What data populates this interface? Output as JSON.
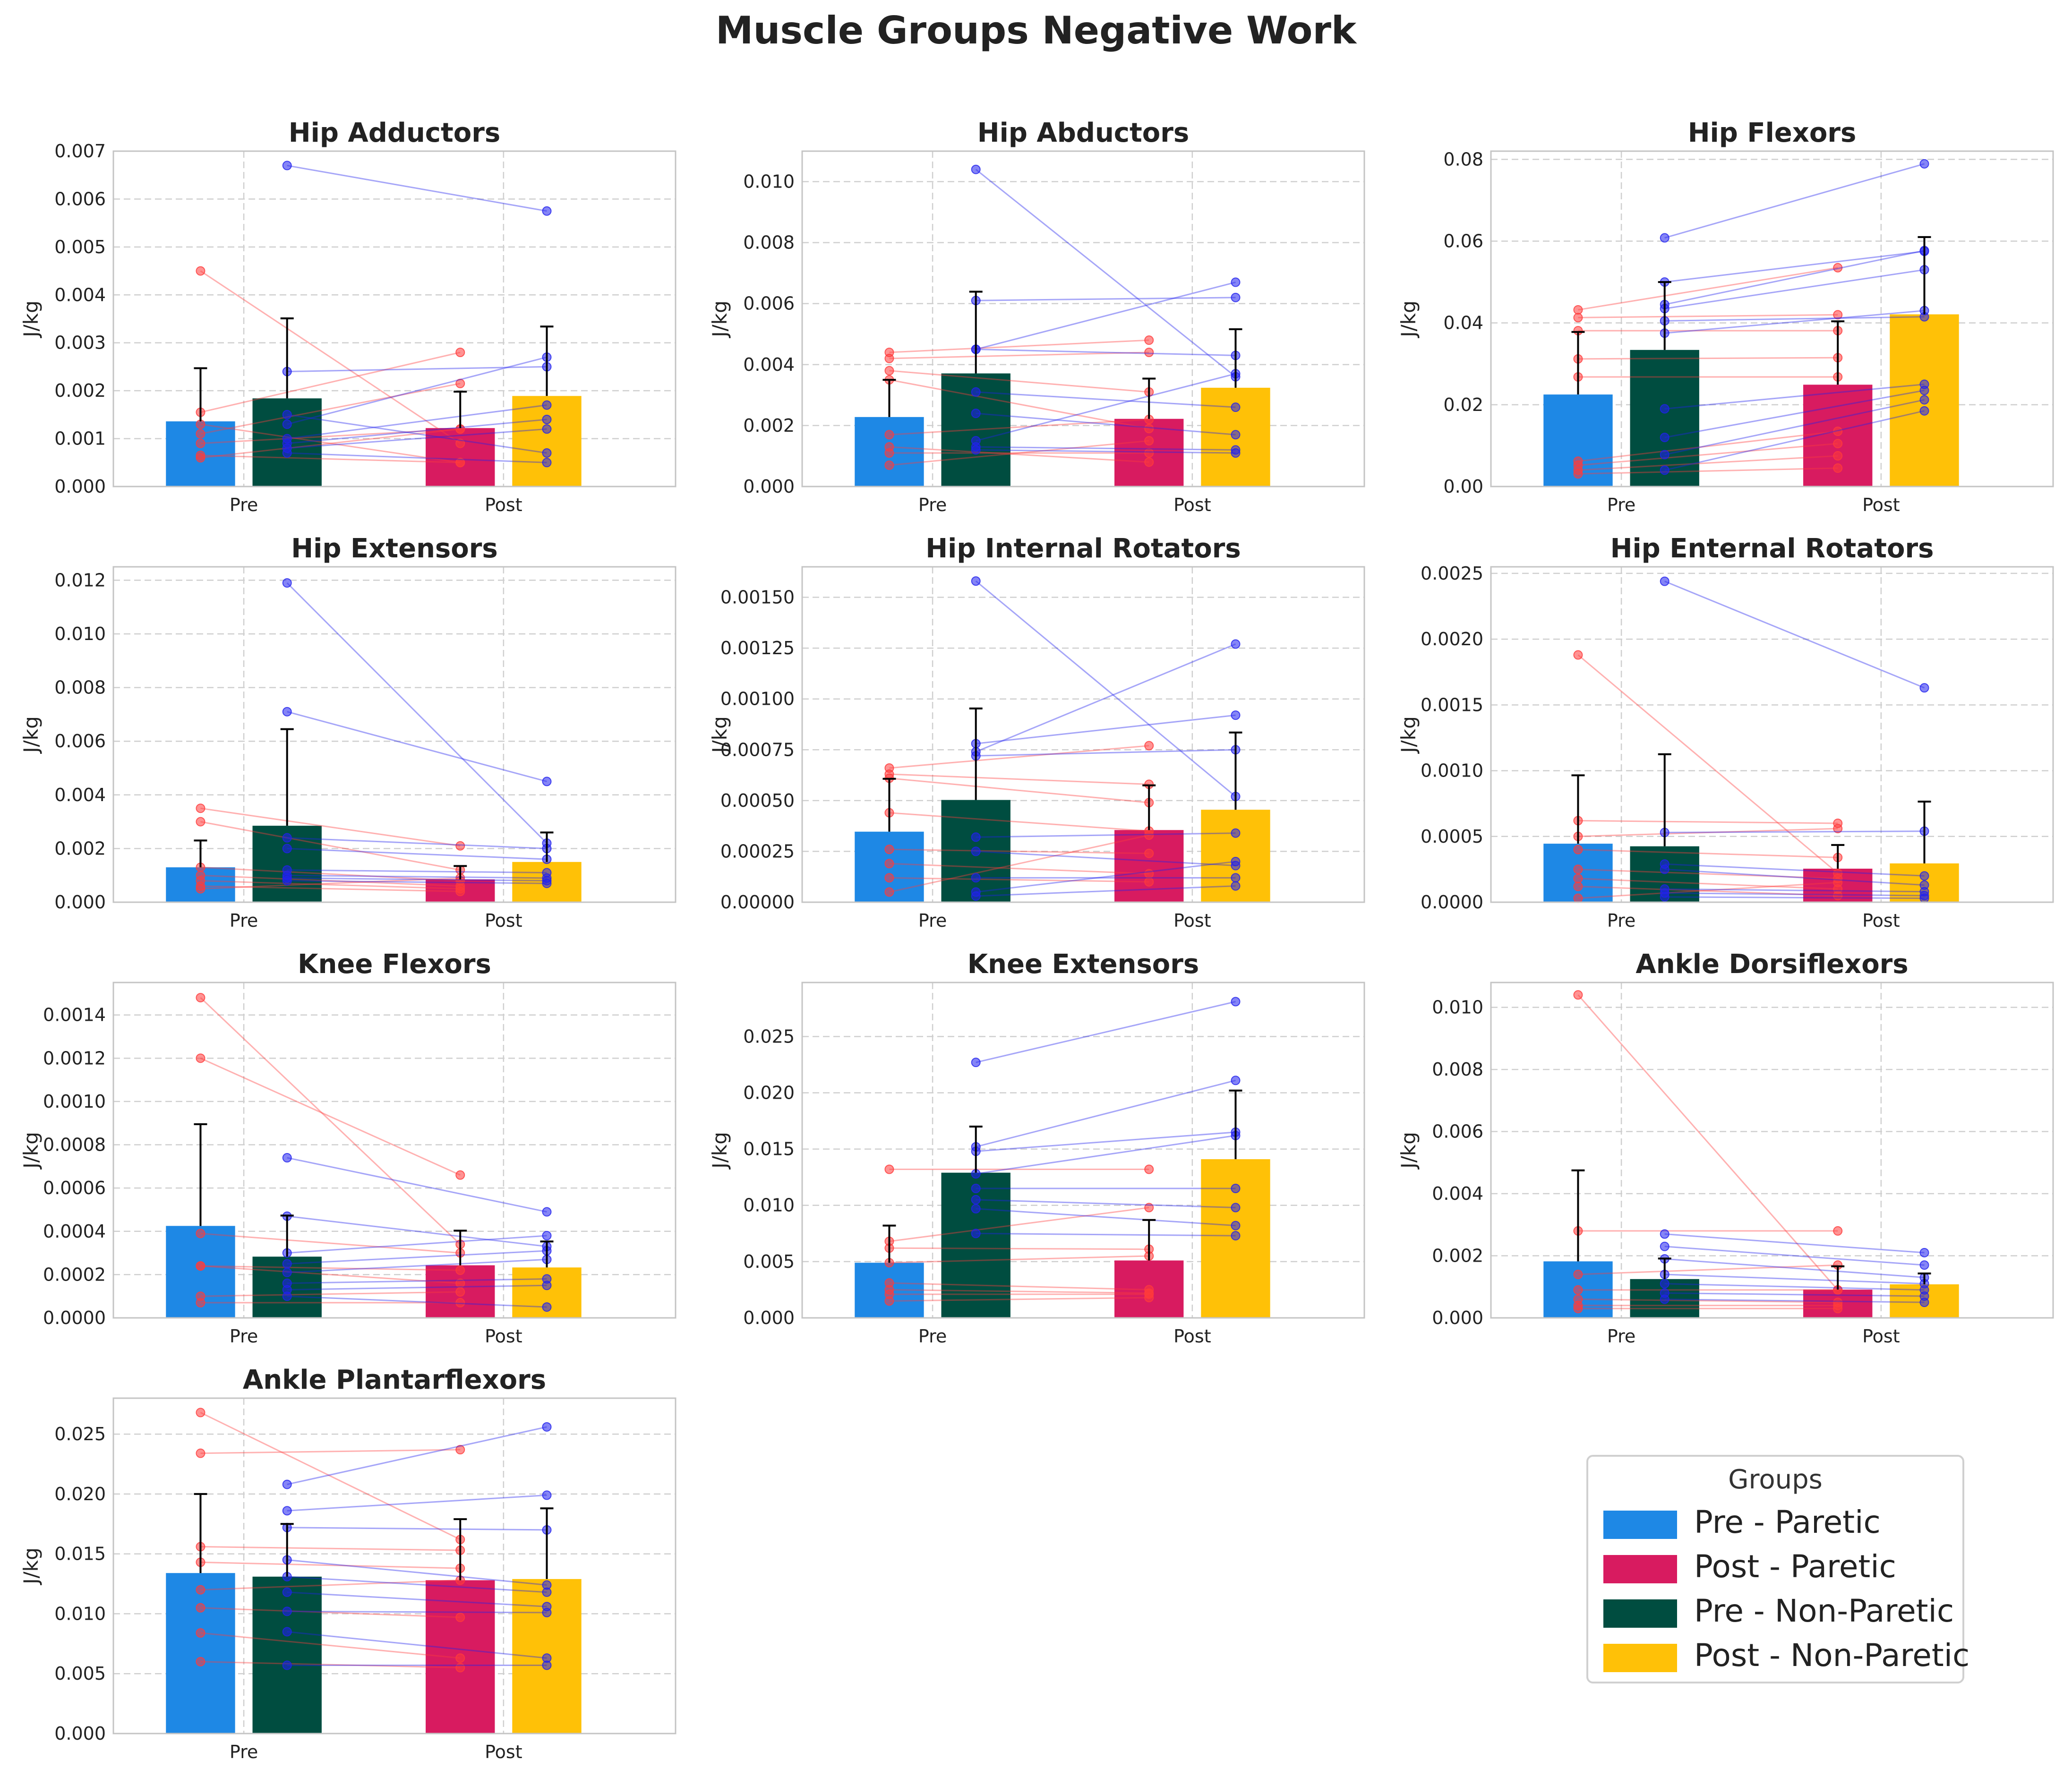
{
  "figure_title": "Muscle Groups Negative Work",
  "colors": {
    "pre_paretic": "#1e88e5",
    "post_paretic": "#d81b60",
    "pre_nonparetic": "#004d40",
    "post_nonparetic": "#ffc107",
    "paretic_points": "#ff3b3b",
    "nonparetic_points": "#2020ee"
  },
  "legend": {
    "title": "Groups",
    "items": [
      {
        "label": "Pre - Paretic",
        "color": "#1e88e5"
      },
      {
        "label": "Post - Paretic",
        "color": "#d81b60"
      },
      {
        "label": "Pre - Non-Paretic",
        "color": "#004d40"
      },
      {
        "label": "Post - Non-Paretic",
        "color": "#ffc107"
      }
    ]
  },
  "chart_data": [
    {
      "type": "bar",
      "title": "Hip Adductors",
      "ylabel": "J/kg",
      "xlabel": "",
      "categories": [
        "Pre",
        "Post"
      ],
      "ylim": [
        0,
        0.007
      ],
      "yticks": [
        "0.000",
        "0.001",
        "0.002",
        "0.003",
        "0.004",
        "0.005",
        "0.006",
        "0.007"
      ],
      "yticks_values": [
        0,
        0.001,
        0.002,
        0.003,
        0.004,
        0.005,
        0.006,
        0.007
      ],
      "series": [
        {
          "name": "Paretic",
          "values": [
            0.00136,
            0.00122
          ],
          "errors": [
            0.00111,
            0.00076
          ]
        },
        {
          "name": "Non-Paretic",
          "values": [
            0.00184,
            0.00189
          ],
          "errors": [
            0.00167,
            0.00145
          ]
        }
      ],
      "paretic_pairs": [
        [
          0.0045,
          0.0009
        ],
        [
          0.00155,
          0.0028
        ],
        [
          0.0011,
          0.00215
        ],
        [
          0.0009,
          0.0012
        ],
        [
          0.00065,
          0.0005
        ],
        [
          0.0006,
          0.0012
        ],
        [
          0.0013,
          0.0005
        ]
      ],
      "nonparetic_pairs": [
        [
          0.0067,
          0.00575
        ],
        [
          0.0024,
          0.0025
        ],
        [
          0.0013,
          0.0027
        ],
        [
          0.001,
          0.0017
        ],
        [
          0.0009,
          0.0014
        ],
        [
          0.0008,
          0.0012
        ],
        [
          0.0015,
          0.0007
        ],
        [
          0.0007,
          0.0005
        ]
      ]
    },
    {
      "type": "bar",
      "title": "Hip Abductors",
      "ylabel": "J/kg",
      "xlabel": "",
      "categories": [
        "Pre",
        "Post"
      ],
      "ylim": [
        0,
        0.011
      ],
      "yticks": [
        "0.000",
        "0.002",
        "0.004",
        "0.006",
        "0.008",
        "0.010"
      ],
      "yticks_values": [
        0,
        0.002,
        0.004,
        0.006,
        0.008,
        0.01
      ],
      "series": [
        {
          "name": "Paretic",
          "values": [
            0.00228,
            0.00222
          ],
          "errors": [
            0.00122,
            0.00132
          ]
        },
        {
          "name": "Non-Paretic",
          "values": [
            0.00371,
            0.00324
          ],
          "errors": [
            0.00268,
            0.00192
          ]
        }
      ],
      "paretic_pairs": [
        [
          0.0044,
          0.0048
        ],
        [
          0.0042,
          0.0044
        ],
        [
          0.0038,
          0.0031
        ],
        [
          0.0035,
          0.0019
        ],
        [
          0.0017,
          0.0022
        ],
        [
          0.0013,
          0.0008
        ],
        [
          0.0011,
          0.0011
        ],
        [
          0.0007,
          0.0015
        ]
      ],
      "nonparetic_pairs": [
        [
          0.0104,
          0.0036
        ],
        [
          0.0061,
          0.0062
        ],
        [
          0.0045,
          0.0043
        ],
        [
          0.0045,
          0.0067
        ],
        [
          0.0031,
          0.0026
        ],
        [
          0.0024,
          0.0017
        ],
        [
          0.0015,
          0.0037
        ],
        [
          0.0013,
          0.0012
        ],
        [
          0.0012,
          0.0011
        ]
      ]
    },
    {
      "type": "bar",
      "title": "Hip Flexors",
      "ylabel": "J/kg",
      "xlabel": "",
      "categories": [
        "Pre",
        "Post"
      ],
      "ylim": [
        0,
        0.082
      ],
      "yticks": [
        "0.00",
        "0.02",
        "0.04",
        "0.06",
        "0.08"
      ],
      "yticks_values": [
        0,
        0.02,
        0.04,
        0.06,
        0.08
      ],
      "series": [
        {
          "name": "Paretic",
          "values": [
            0.0225,
            0.0249
          ],
          "errors": [
            0.0153,
            0.0155
          ]
        },
        {
          "name": "Non-Paretic",
          "values": [
            0.0334,
            0.0421
          ],
          "errors": [
            0.0166,
            0.0189
          ]
        }
      ],
      "paretic_pairs": [
        [
          0.0432,
          0.0535
        ],
        [
          0.0413,
          0.042
        ],
        [
          0.0381,
          0.0381
        ],
        [
          0.0312,
          0.0315
        ],
        [
          0.0268,
          0.0268
        ],
        [
          0.0062,
          0.0135
        ],
        [
          0.0052,
          0.0105
        ],
        [
          0.004,
          0.0075
        ],
        [
          0.0031,
          0.0045
        ]
      ],
      "nonparetic_pairs": [
        [
          0.0608,
          0.0789
        ],
        [
          0.05,
          0.0575
        ],
        [
          0.0445,
          0.0577
        ],
        [
          0.0435,
          0.053
        ],
        [
          0.0405,
          0.0415
        ],
        [
          0.0375,
          0.043
        ],
        [
          0.019,
          0.025
        ],
        [
          0.012,
          0.0235
        ],
        [
          0.0078,
          0.0212
        ],
        [
          0.004,
          0.0185
        ]
      ]
    },
    {
      "type": "bar",
      "title": "Hip Extensors",
      "ylabel": "J/kg",
      "xlabel": "",
      "categories": [
        "Pre",
        "Post"
      ],
      "ylim": [
        0,
        0.0125
      ],
      "yticks": [
        "0.000",
        "0.002",
        "0.004",
        "0.006",
        "0.008",
        "0.010",
        "0.012"
      ],
      "yticks_values": [
        0,
        0.002,
        0.004,
        0.006,
        0.008,
        0.01,
        0.012
      ],
      "series": [
        {
          "name": "Paretic",
          "values": [
            0.0013,
            0.00085
          ],
          "errors": [
            0.001,
            0.0005
          ]
        },
        {
          "name": "Non-Paretic",
          "values": [
            0.00285,
            0.0015
          ],
          "errors": [
            0.0036,
            0.0011
          ]
        }
      ],
      "paretic_pairs": [
        [
          0.0035,
          0.0021
        ],
        [
          0.003,
          0.0012
        ],
        [
          0.0013,
          0.0008
        ],
        [
          0.001,
          0.0006
        ],
        [
          0.0008,
          0.0005
        ],
        [
          0.0006,
          0.0004
        ],
        [
          0.0005,
          0.0009
        ]
      ],
      "nonparetic_pairs": [
        [
          0.0119,
          0.0022
        ],
        [
          0.0071,
          0.0045
        ],
        [
          0.0024,
          0.002
        ],
        [
          0.002,
          0.0016
        ],
        [
          0.0012,
          0.0011
        ],
        [
          0.001,
          0.0009
        ],
        [
          0.0009,
          0.0008
        ],
        [
          0.0008,
          0.0007
        ]
      ]
    },
    {
      "type": "bar",
      "title": "Hip Internal Rotators",
      "ylabel": "J/kg",
      "xlabel": "",
      "categories": [
        "Pre",
        "Post"
      ],
      "ylim": [
        0,
        0.00165
      ],
      "yticks": [
        "0.00000",
        "0.00025",
        "0.00050",
        "0.00075",
        "0.00100",
        "0.00125",
        "0.00150"
      ],
      "yticks_values": [
        0,
        0.00025,
        0.0005,
        0.00075,
        0.001,
        0.00125,
        0.0015
      ],
      "series": [
        {
          "name": "Paretic",
          "values": [
            0.000347,
            0.000355
          ],
          "errors": [
            0.00026,
            0.00022
          ]
        },
        {
          "name": "Non-Paretic",
          "values": [
            0.000503,
            0.000455
          ],
          "errors": [
            0.00045,
            0.00038
          ]
        }
      ],
      "paretic_pairs": [
        [
          0.00066,
          0.00077
        ],
        [
          0.00063,
          0.00058
        ],
        [
          0.00061,
          0.00049
        ],
        [
          0.00044,
          0.00035
        ],
        [
          0.00026,
          0.00024
        ],
        [
          0.00019,
          0.00014
        ],
        [
          0.00012,
          0.0001
        ],
        [
          5e-05,
          0.00033
        ]
      ],
      "nonparetic_pairs": [
        [
          0.00158,
          0.00052
        ],
        [
          0.00078,
          0.00092
        ],
        [
          0.00074,
          0.00127
        ],
        [
          0.00072,
          0.00075
        ],
        [
          0.00032,
          0.00034
        ],
        [
          0.00025,
          0.00018
        ],
        [
          0.00012,
          0.00012
        ],
        [
          5e-05,
          0.0002
        ],
        [
          3e-05,
          8e-05
        ]
      ]
    },
    {
      "type": "bar",
      "title": "Hip Enternal Rotators",
      "ylabel": "J/kg",
      "xlabel": "",
      "categories": [
        "Pre",
        "Post"
      ],
      "ylim": [
        0,
        0.00255
      ],
      "yticks": [
        "0.0000",
        "0.0005",
        "0.0010",
        "0.0015",
        "0.0020",
        "0.0025"
      ],
      "yticks_values": [
        0,
        0.0005,
        0.001,
        0.0015,
        0.002,
        0.0025
      ],
      "series": [
        {
          "name": "Paretic",
          "values": [
            0.000445,
            0.000255
          ],
          "errors": [
            0.00052,
            0.00018
          ]
        },
        {
          "name": "Non-Paretic",
          "values": [
            0.000425,
            0.000295
          ],
          "errors": [
            0.0007,
            0.00047
          ]
        }
      ],
      "paretic_pairs": [
        [
          0.00188,
          0.00022
        ],
        [
          0.00062,
          0.0006
        ],
        [
          0.0005,
          0.00056
        ],
        [
          0.0004,
          0.00034
        ],
        [
          0.00025,
          0.00018
        ],
        [
          0.00018,
          0.0001
        ],
        [
          0.00012,
          5e-05
        ],
        [
          3e-05,
          0.00015
        ]
      ],
      "nonparetic_pairs": [
        [
          0.00244,
          0.00163
        ],
        [
          0.00053,
          0.00054
        ],
        [
          0.00029,
          0.0002
        ],
        [
          0.00025,
          0.00013
        ],
        [
          0.0001,
          8e-05
        ],
        [
          7e-05,
          5e-05
        ],
        [
          4e-05,
          3e-05
        ]
      ]
    },
    {
      "type": "bar",
      "title": "Knee Flexors",
      "ylabel": "J/kg",
      "xlabel": "",
      "categories": [
        "Pre",
        "Post"
      ],
      "ylim": [
        0,
        0.00155
      ],
      "yticks": [
        "0.0000",
        "0.0002",
        "0.0004",
        "0.0006",
        "0.0008",
        "0.0010",
        "0.0012",
        "0.0014"
      ],
      "yticks_values": [
        0,
        0.0002,
        0.0004,
        0.0006,
        0.0008,
        0.001,
        0.0012,
        0.0014
      ],
      "series": [
        {
          "name": "Paretic",
          "values": [
            0.000425,
            0.000243
          ],
          "errors": [
            0.00047,
            0.00016
          ]
        },
        {
          "name": "Non-Paretic",
          "values": [
            0.000283,
            0.000233
          ],
          "errors": [
            0.00019,
            0.00012
          ]
        }
      ],
      "paretic_pairs": [
        [
          0.00148,
          0.00034
        ],
        [
          0.0012,
          0.00066
        ],
        [
          0.00039,
          0.0003
        ],
        [
          0.00024,
          0.00022
        ],
        [
          0.00024,
          0.00016
        ],
        [
          0.0001,
          0.00012
        ],
        [
          7e-05,
          7e-05
        ]
      ],
      "nonparetic_pairs": [
        [
          0.00074,
          0.00049
        ],
        [
          0.00047,
          0.00033
        ],
        [
          0.0003,
          0.00038
        ],
        [
          0.00025,
          0.00031
        ],
        [
          0.00021,
          0.00027
        ],
        [
          0.00016,
          0.00018
        ],
        [
          0.00013,
          0.00015
        ],
        [
          0.0001,
          5e-05
        ]
      ]
    },
    {
      "type": "bar",
      "title": "Knee Extensors",
      "ylabel": "J/kg",
      "xlabel": "",
      "categories": [
        "Pre",
        "Post"
      ],
      "ylim": [
        0,
        0.0298
      ],
      "yticks": [
        "0.000",
        "0.005",
        "0.010",
        "0.015",
        "0.020",
        "0.025"
      ],
      "yticks_values": [
        0,
        0.005,
        0.01,
        0.015,
        0.02,
        0.025
      ],
      "series": [
        {
          "name": "Paretic",
          "values": [
            0.0049,
            0.0051
          ],
          "errors": [
            0.0033,
            0.0036
          ]
        },
        {
          "name": "Non-Paretic",
          "values": [
            0.0129,
            0.0141
          ],
          "errors": [
            0.0041,
            0.0061
          ]
        }
      ],
      "paretic_pairs": [
        [
          0.0132,
          0.0132
        ],
        [
          0.0068,
          0.0098
        ],
        [
          0.0062,
          0.0061
        ],
        [
          0.0049,
          0.0055
        ],
        [
          0.0031,
          0.0025
        ],
        [
          0.0025,
          0.0022
        ],
        [
          0.0021,
          0.0021
        ],
        [
          0.0015,
          0.0018
        ]
      ],
      "nonparetic_pairs": [
        [
          0.0227,
          0.0281
        ],
        [
          0.0152,
          0.0211
        ],
        [
          0.0148,
          0.0165
        ],
        [
          0.0128,
          0.0162
        ],
        [
          0.0115,
          0.0115
        ],
        [
          0.0105,
          0.0098
        ],
        [
          0.0097,
          0.0082
        ],
        [
          0.0075,
          0.0073
        ]
      ]
    },
    {
      "type": "bar",
      "title": "Ankle Dorsiflexors",
      "ylabel": "J/kg",
      "xlabel": "",
      "categories": [
        "Pre",
        "Post"
      ],
      "ylim": [
        0,
        0.0108
      ],
      "yticks": [
        "0.000",
        "0.002",
        "0.004",
        "0.006",
        "0.008",
        "0.010"
      ],
      "yticks_values": [
        0,
        0.002,
        0.004,
        0.006,
        0.008,
        0.01
      ],
      "series": [
        {
          "name": "Paretic",
          "values": [
            0.00182,
            0.00091
          ],
          "errors": [
            0.00293,
            0.00075
          ]
        },
        {
          "name": "Non-Paretic",
          "values": [
            0.00125,
            0.00108
          ],
          "errors": [
            0.00066,
            0.00035
          ]
        }
      ],
      "paretic_pairs": [
        [
          0.0104,
          0.0009
        ],
        [
          0.0028,
          0.0028
        ],
        [
          0.0014,
          0.0017
        ],
        [
          0.0009,
          0.0009
        ],
        [
          0.0006,
          0.0005
        ],
        [
          0.0004,
          0.0004
        ],
        [
          0.0003,
          0.0003
        ]
      ],
      "nonparetic_pairs": [
        [
          0.0027,
          0.0021
        ],
        [
          0.0023,
          0.0017
        ],
        [
          0.0019,
          0.0013
        ],
        [
          0.0014,
          0.0011
        ],
        [
          0.0011,
          0.0009
        ],
        [
          0.0008,
          0.0007
        ],
        [
          0.0006,
          0.0005
        ]
      ]
    },
    {
      "type": "bar",
      "title": "Ankle Plantarflexors",
      "ylabel": "J/kg",
      "xlabel": "",
      "categories": [
        "Pre",
        "Post"
      ],
      "ylim": [
        0,
        0.028
      ],
      "yticks": [
        "0.000",
        "0.005",
        "0.010",
        "0.015",
        "0.020",
        "0.025"
      ],
      "yticks_values": [
        0,
        0.005,
        0.01,
        0.015,
        0.02,
        0.025
      ],
      "series": [
        {
          "name": "Paretic",
          "values": [
            0.0134,
            0.0128
          ],
          "errors": [
            0.0066,
            0.0051
          ]
        },
        {
          "name": "Non-Paretic",
          "values": [
            0.0131,
            0.0129
          ],
          "errors": [
            0.0044,
            0.0059
          ]
        }
      ],
      "paretic_pairs": [
        [
          0.0268,
          0.0162
        ],
        [
          0.0234,
          0.0237
        ],
        [
          0.0156,
          0.0153
        ],
        [
          0.0143,
          0.0138
        ],
        [
          0.012,
          0.0128
        ],
        [
          0.0105,
          0.0097
        ],
        [
          0.0084,
          0.0063
        ],
        [
          0.006,
          0.0055
        ]
      ],
      "nonparetic_pairs": [
        [
          0.0208,
          0.0256
        ],
        [
          0.0186,
          0.0199
        ],
        [
          0.0172,
          0.017
        ],
        [
          0.0145,
          0.0124
        ],
        [
          0.0131,
          0.0118
        ],
        [
          0.0118,
          0.0106
        ],
        [
          0.0102,
          0.0101
        ],
        [
          0.0085,
          0.0063
        ],
        [
          0.0057,
          0.0057
        ]
      ]
    }
  ]
}
